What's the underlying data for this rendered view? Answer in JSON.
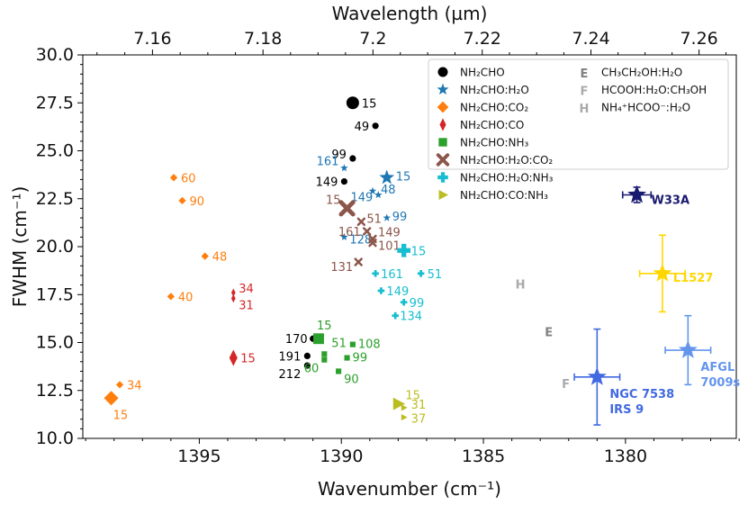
{
  "chart_data": {
    "type": "scatter",
    "xlabel": "Wavenumber (cm⁻¹)",
    "ylabel": "FWHM (cm⁻¹)",
    "top_xlabel": "Wavelength (µm)",
    "xlim": [
      1399.1,
      1376.1
    ],
    "ylim": [
      10.0,
      30.0
    ],
    "x_ticks": [
      1395,
      1390,
      1385,
      1380
    ],
    "y_ticks": [
      "10.0",
      "12.5",
      "15.0",
      "17.5",
      "20.0",
      "22.5",
      "25.0",
      "27.5",
      "30.0"
    ],
    "top_ticks": [
      "7.16",
      "7.18",
      "7.2",
      "7.22",
      "7.24",
      "7.26"
    ],
    "colors": {
      "nh2cho": "#000000",
      "h2o": "#1f77b4",
      "co2": "#ff7f0e",
      "co": "#d62728",
      "nh3": "#2ca02c",
      "h2o_co2": "#8c564b",
      "h2o_nh3": "#17becf",
      "co_nh3": "#bcbd22",
      "letters": "#a9a9a9",
      "w33a": "#191970",
      "l1527": "#ffd700",
      "ngc7538": "#4169e1",
      "afgl": "#6495ed"
    },
    "legend": [
      {
        "label": "NH₂CHO",
        "marker": "circle",
        "color": "#000000"
      },
      {
        "label": "NH₂CHO:H₂O",
        "marker": "star",
        "color": "#1f77b4"
      },
      {
        "label": "NH₂CHO:CO₂",
        "marker": "diamond",
        "color": "#ff7f0e"
      },
      {
        "label": "NH₂CHO:CO",
        "marker": "thin-diamond",
        "color": "#d62728"
      },
      {
        "label": "NH₂CHO:NH₃",
        "marker": "square",
        "color": "#2ca02c"
      },
      {
        "label": "NH₂CHO:H₂O:CO₂",
        "marker": "x",
        "color": "#8c564b"
      },
      {
        "label": "NH₂CHO:H₂O:NH₃",
        "marker": "plus",
        "color": "#17becf"
      },
      {
        "label": "NH₂CHO:CO:NH₃",
        "marker": "triangle",
        "color": "#bcbd22"
      },
      {
        "label": "CH₃CH₂OH:H₂O",
        "marker": "letter",
        "letter": "E",
        "color": "#808080"
      },
      {
        "label": "HCOOH:H₂O:CH₃OH",
        "marker": "letter",
        "letter": "F",
        "color": "#a9a9a9"
      },
      {
        "label": "NH₄⁺HCOO⁻:H₂O",
        "marker": "letter",
        "letter": "H",
        "color": "#a9a9a9"
      }
    ],
    "series": [
      {
        "name": "NH₂CHO",
        "marker": "circle",
        "color": "#000000",
        "points": [
          {
            "x": 1389.6,
            "y": 27.5,
            "label": "15",
            "big": true
          },
          {
            "x": 1388.8,
            "y": 26.3,
            "label": "49"
          },
          {
            "x": 1389.6,
            "y": 24.6,
            "label": "99"
          },
          {
            "x": 1389.9,
            "y": 23.4,
            "label": "149"
          },
          {
            "x": 1391.0,
            "y": 15.2,
            "label": "170"
          },
          {
            "x": 1391.2,
            "y": 14.3,
            "label": "191"
          },
          {
            "x": 1391.2,
            "y": 13.8,
            "label": "212"
          }
        ]
      },
      {
        "name": "NH₂CHO:H₂O",
        "marker": "star",
        "color": "#1f77b4",
        "points": [
          {
            "x": 1389.9,
            "y": 24.1,
            "label": "161"
          },
          {
            "x": 1388.4,
            "y": 23.6,
            "label": "15",
            "big": true
          },
          {
            "x": 1388.9,
            "y": 22.9,
            "label": "48"
          },
          {
            "x": 1388.7,
            "y": 22.7,
            "label": "149"
          },
          {
            "x": 1388.4,
            "y": 21.5,
            "label": "99"
          },
          {
            "x": 1389.9,
            "y": 20.5,
            "label": "128"
          }
        ]
      },
      {
        "name": "NH₂CHO:CO₂",
        "marker": "diamond",
        "color": "#ff7f0e",
        "points": [
          {
            "x": 1395.9,
            "y": 23.6,
            "label": "60"
          },
          {
            "x": 1395.6,
            "y": 22.4,
            "label": "90"
          },
          {
            "x": 1394.8,
            "y": 19.5,
            "label": "48"
          },
          {
            "x": 1396.0,
            "y": 17.4,
            "label": "40"
          },
          {
            "x": 1397.8,
            "y": 12.8,
            "label": "34"
          },
          {
            "x": 1398.1,
            "y": 12.1,
            "label": "15",
            "big": true
          }
        ]
      },
      {
        "name": "NH₂CHO:CO",
        "marker": "thin-diamond",
        "color": "#d62728",
        "points": [
          {
            "x": 1393.8,
            "y": 17.6,
            "label": "34"
          },
          {
            "x": 1393.8,
            "y": 17.3,
            "label": "31"
          },
          {
            "x": 1393.8,
            "y": 14.2,
            "label": "15",
            "big": true
          }
        ]
      },
      {
        "name": "NH₂CHO:NH₃",
        "marker": "square",
        "color": "#2ca02c",
        "points": [
          {
            "x": 1390.8,
            "y": 15.2,
            "label": "15",
            "big": true
          },
          {
            "x": 1389.6,
            "y": 14.9,
            "label": "108"
          },
          {
            "x": 1390.6,
            "y": 14.4,
            "label": "51"
          },
          {
            "x": 1389.8,
            "y": 14.2,
            "label": "99"
          },
          {
            "x": 1390.1,
            "y": 13.5,
            "label": "90"
          },
          {
            "x": 1390.6,
            "y": 14.1,
            "label": "60"
          }
        ]
      },
      {
        "name": "NH₂CHO:H₂O:CO₂",
        "marker": "x",
        "color": "#8c564b",
        "points": [
          {
            "x": 1389.8,
            "y": 22.0,
            "label": "15",
            "big": true
          },
          {
            "x": 1389.3,
            "y": 21.3,
            "label": "51"
          },
          {
            "x": 1389.1,
            "y": 20.8,
            "label": "161"
          },
          {
            "x": 1388.9,
            "y": 20.4,
            "label": "149"
          },
          {
            "x": 1388.9,
            "y": 20.2,
            "label": "101"
          },
          {
            "x": 1389.4,
            "y": 19.2,
            "label": "131"
          }
        ]
      },
      {
        "name": "NH₂CHO:H₂O:NH₃",
        "marker": "plus",
        "color": "#17becf",
        "points": [
          {
            "x": 1387.8,
            "y": 19.8,
            "label": "15",
            "big": true
          },
          {
            "x": 1388.8,
            "y": 18.6,
            "label": "161"
          },
          {
            "x": 1387.2,
            "y": 18.6,
            "label": "51"
          },
          {
            "x": 1388.6,
            "y": 17.7,
            "label": "149"
          },
          {
            "x": 1387.8,
            "y": 17.1,
            "label": "99"
          },
          {
            "x": 1388.1,
            "y": 16.4,
            "label": "134"
          }
        ]
      },
      {
        "name": "NH₂CHO:CO:NH₃",
        "marker": "triangle",
        "color": "#bcbd22",
        "points": [
          {
            "x": 1388.0,
            "y": 11.8,
            "label": "15",
            "big": true
          },
          {
            "x": 1387.8,
            "y": 11.6,
            "label": "31"
          },
          {
            "x": 1387.8,
            "y": 11.1,
            "label": "37"
          }
        ]
      }
    ],
    "letter_points": [
      {
        "letter": "H",
        "x": 1383.7,
        "y": 18.1,
        "color": "#a9a9a9"
      },
      {
        "letter": "E",
        "x": 1382.7,
        "y": 15.6,
        "color": "#808080"
      },
      {
        "letter": "F",
        "x": 1382.1,
        "y": 12.9,
        "color": "#a9a9a9"
      }
    ],
    "observations": [
      {
        "name": "W33A",
        "x": 1379.6,
        "y": 22.7,
        "xerr": 0.5,
        "yerr": 0.4,
        "color": "#191970"
      },
      {
        "name": "L1527",
        "x": 1378.7,
        "y": 18.6,
        "xerr": 0.8,
        "yerr": 2.0,
        "color": "#ffd700"
      },
      {
        "name": "NGC 7538\nIRS 9",
        "x": 1381.0,
        "y": 13.2,
        "xerr": 0.8,
        "yerr": 2.5,
        "color": "#4169e1"
      },
      {
        "name": "AFGL\n7009s",
        "x": 1377.8,
        "y": 14.6,
        "xerr": 0.8,
        "yerr": 1.8,
        "color": "#6495ed"
      }
    ]
  }
}
